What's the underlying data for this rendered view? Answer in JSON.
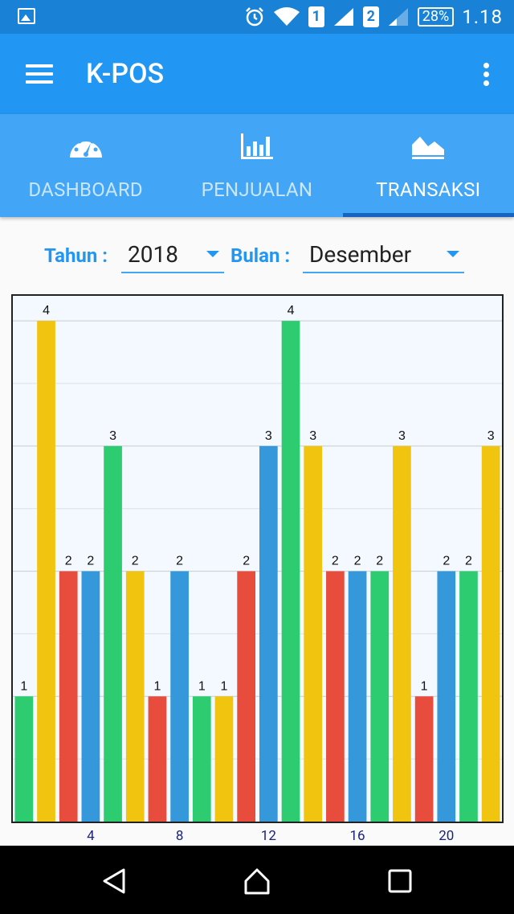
{
  "status_bar": {
    "sim1": "1",
    "sim2": "2",
    "battery": "28%",
    "time": "1.18"
  },
  "toolbar": {
    "title": "K-POS"
  },
  "tabs": [
    {
      "label": "DASHBOARD",
      "icon": "speedometer-icon",
      "active": false
    },
    {
      "label": "PENJUALAN",
      "icon": "bar-chart-icon",
      "active": false
    },
    {
      "label": "TRANSAKSI",
      "icon": "area-chart-icon",
      "active": true
    }
  ],
  "filters": {
    "year_label": "Tahun :",
    "year_value": "2018",
    "month_label": "Bulan :",
    "month_value": "Desember"
  },
  "colors": {
    "primary": "#2196f3",
    "primary_dark": "#1a82d6",
    "green": "#2ecc71",
    "yellow": "#f1c40f",
    "red": "#e74c3c",
    "blue": "#3498db"
  },
  "chart_data": {
    "type": "bar",
    "x": [
      1,
      2,
      3,
      4,
      5,
      6,
      7,
      8,
      9,
      10,
      11,
      12,
      13,
      14,
      15,
      16,
      17,
      18,
      19,
      20,
      21,
      22
    ],
    "values": [
      1,
      4,
      2,
      2,
      3,
      2,
      1,
      2,
      1,
      1,
      2,
      3,
      4,
      3,
      2,
      2,
      2,
      3,
      1,
      2,
      2,
      3
    ],
    "bar_colors": [
      "green",
      "yellow",
      "red",
      "blue",
      "green",
      "yellow",
      "red",
      "blue",
      "green",
      "yellow",
      "red",
      "blue",
      "green",
      "yellow",
      "red",
      "blue",
      "green",
      "yellow",
      "red",
      "blue",
      "green",
      "yellow"
    ],
    "x_tick_labels": [
      "4",
      "8",
      "12",
      "16",
      "20"
    ],
    "x_tick_positions": [
      4,
      8,
      12,
      16,
      20
    ],
    "ylim": [
      0,
      4.2
    ],
    "grid": true,
    "title": "",
    "xlabel": "",
    "ylabel": ""
  }
}
